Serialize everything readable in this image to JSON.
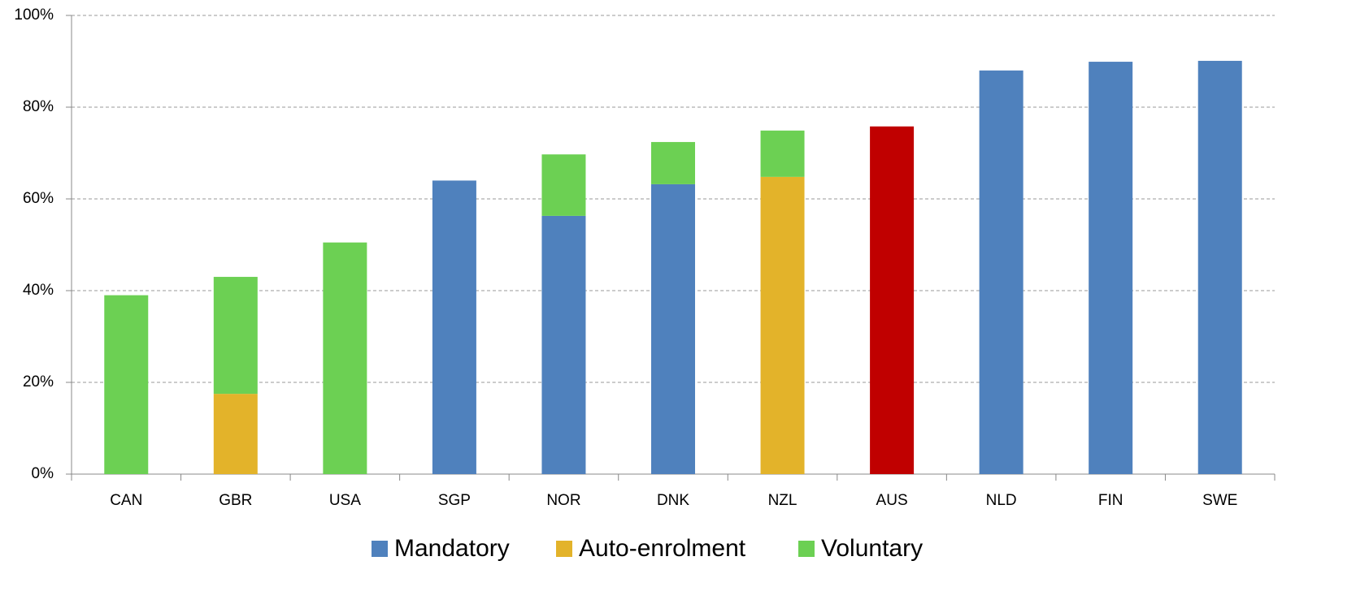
{
  "chart_data": {
    "type": "bar",
    "stacked": true,
    "categories": [
      "CAN",
      "GBR",
      "USA",
      "SGP",
      "NOR",
      "DNK",
      "NZL",
      "AUS",
      "NLD",
      "FIN",
      "SWE"
    ],
    "series": [
      {
        "name": "Mandatory",
        "color": "#4f81bd",
        "values": [
          null,
          null,
          null,
          64,
          56.3,
          63.2,
          null,
          75.8,
          88,
          89.9,
          90.1
        ]
      },
      {
        "name": "Auto-enrolment",
        "color": "#e3b32a",
        "values": [
          null,
          17.5,
          null,
          null,
          null,
          null,
          64.8,
          null,
          null,
          null,
          null
        ]
      },
      {
        "name": "Voluntary",
        "color": "#6cd053",
        "values": [
          39,
          25.5,
          50.5,
          null,
          13.4,
          9.2,
          10.1,
          null,
          null,
          null,
          null
        ]
      }
    ],
    "highlight": {
      "index": 7,
      "color": "#c00000"
    },
    "ylim": [
      0,
      100
    ],
    "yticks": [
      {
        "value": 0,
        "label": "0%"
      },
      {
        "value": 20,
        "label": "20%"
      },
      {
        "value": 40,
        "label": "40%"
      },
      {
        "value": 60,
        "label": "60%"
      },
      {
        "value": 80,
        "label": "80%"
      },
      {
        "value": 100,
        "label": "100%"
      }
    ],
    "grid": true,
    "legend": "bottom"
  }
}
